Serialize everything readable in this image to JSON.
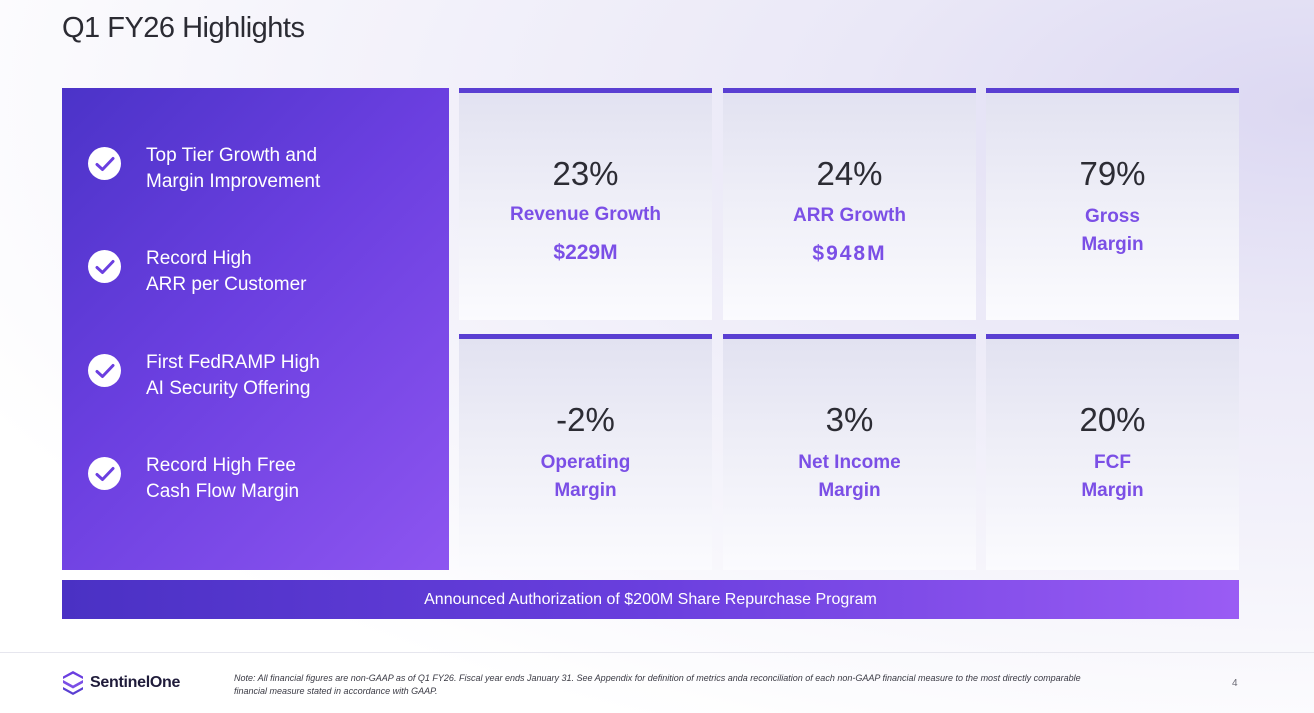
{
  "title": "Q1 FY26 Highlights",
  "highlights": [
    {
      "line1": "Top Tier Growth and",
      "line2": "Margin Improvement",
      "icon": "check-circle-icon"
    },
    {
      "line1": "Record High",
      "line2": "ARR per Customer",
      "icon": "check-circle-icon"
    },
    {
      "line1": "First FedRAMP High",
      "line2": "AI Security Offering",
      "icon": "check-circle-icon"
    },
    {
      "line1": "Record High Free",
      "line2": "Cash Flow Margin",
      "icon": "check-circle-icon"
    }
  ],
  "metrics": [
    {
      "value": "23%",
      "label1": "Revenue Growth",
      "label2": "",
      "amount": "$229M"
    },
    {
      "value": "24%",
      "label1": "ARR Growth",
      "label2": "",
      "amount": "$948M"
    },
    {
      "value": "79%",
      "label1": "Gross",
      "label2": "Margin",
      "amount": ""
    },
    {
      "value": "-2%",
      "label1": "Operating",
      "label2": "Margin",
      "amount": ""
    },
    {
      "value": "3%",
      "label1": "Net Income",
      "label2": "Margin",
      "amount": ""
    },
    {
      "value": "20%",
      "label1": "FCF",
      "label2": "Margin",
      "amount": ""
    }
  ],
  "banner": "Announced Authorization of $200M Share Repurchase Program",
  "footer": {
    "brand": "SentinelOne",
    "note_line1": "Note: All financial figures are non-GAAP as of Q1 FY26. Fiscal year ends January 31. See Appendix for definition of metrics anda reconciliation of each non-GAAP financial measure to the most directly comparable",
    "note_line2": "financial measure stated in accordance with GAAP.",
    "page": "4"
  },
  "colors": {
    "accent_purple": "#7b4fe6",
    "panel_start": "#4b33c8",
    "panel_end": "#8d55f0",
    "card_top_border": "#5a3fd2"
  }
}
